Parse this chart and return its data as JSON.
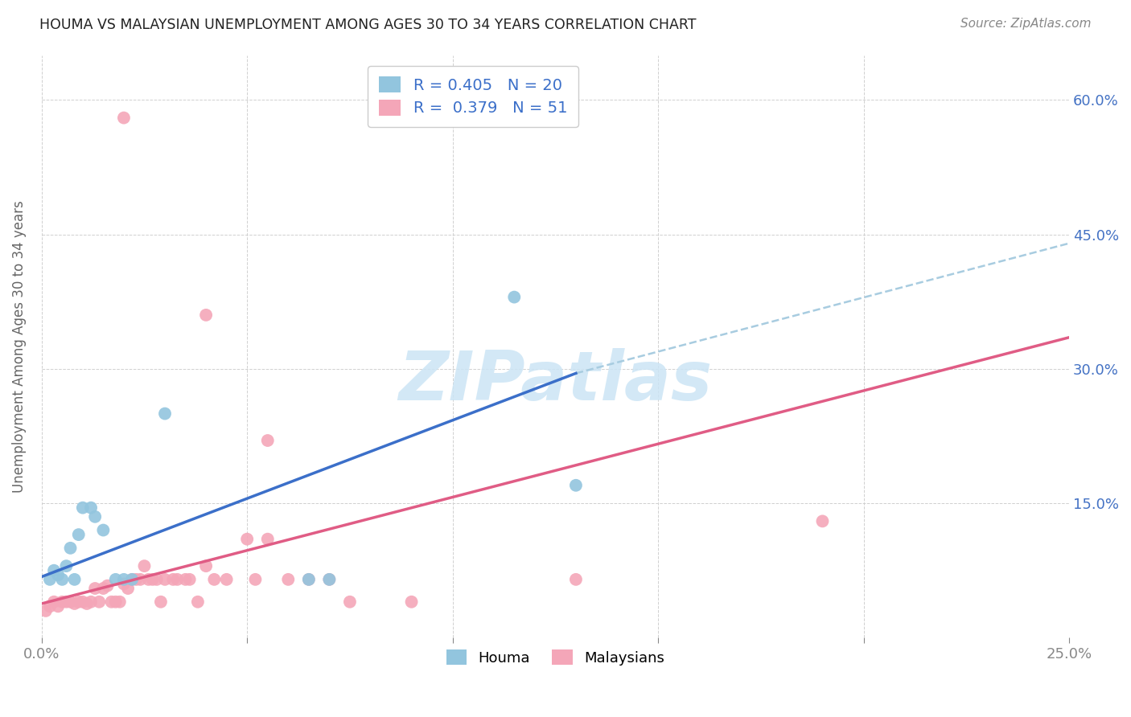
{
  "title": "HOUMA VS MALAYSIAN UNEMPLOYMENT AMONG AGES 30 TO 34 YEARS CORRELATION CHART",
  "source": "Source: ZipAtlas.com",
  "ylabel": "Unemployment Among Ages 30 to 34 years",
  "xlim": [
    0.0,
    0.25
  ],
  "ylim": [
    0.0,
    0.65
  ],
  "xticks": [
    0.0,
    0.05,
    0.1,
    0.15,
    0.2,
    0.25
  ],
  "yticks": [
    0.0,
    0.15,
    0.3,
    0.45,
    0.6
  ],
  "xtick_labels": [
    "0.0%",
    "",
    "",
    "",
    "",
    "25.0%"
  ],
  "ytick_labels_right": [
    "",
    "15.0%",
    "30.0%",
    "45.0%",
    "60.0%"
  ],
  "houma_R": "0.405",
  "houma_N": "20",
  "malaysian_R": "0.379",
  "malaysian_N": "51",
  "houma_color": "#92c5de",
  "malaysian_color": "#f4a6b8",
  "houma_line_color": "#3b6fc9",
  "malaysian_line_color": "#e05c85",
  "dashed_line_color": "#a8cce0",
  "right_tick_color": "#4472c4",
  "watermark_color": "#cce5f5",
  "watermark": "ZIPatlas",
  "houma_points": [
    [
      0.002,
      0.065
    ],
    [
      0.003,
      0.075
    ],
    [
      0.004,
      0.07
    ],
    [
      0.005,
      0.065
    ],
    [
      0.006,
      0.08
    ],
    [
      0.007,
      0.1
    ],
    [
      0.008,
      0.065
    ],
    [
      0.009,
      0.115
    ],
    [
      0.01,
      0.145
    ],
    [
      0.012,
      0.145
    ],
    [
      0.013,
      0.135
    ],
    [
      0.015,
      0.12
    ],
    [
      0.018,
      0.065
    ],
    [
      0.02,
      0.065
    ],
    [
      0.022,
      0.065
    ],
    [
      0.03,
      0.25
    ],
    [
      0.065,
      0.065
    ],
    [
      0.07,
      0.065
    ],
    [
      0.115,
      0.38
    ],
    [
      0.13,
      0.17
    ]
  ],
  "malaysian_points": [
    [
      0.001,
      0.03
    ],
    [
      0.002,
      0.035
    ],
    [
      0.003,
      0.04
    ],
    [
      0.004,
      0.035
    ],
    [
      0.005,
      0.04
    ],
    [
      0.006,
      0.04
    ],
    [
      0.007,
      0.04
    ],
    [
      0.008,
      0.038
    ],
    [
      0.009,
      0.04
    ],
    [
      0.01,
      0.04
    ],
    [
      0.011,
      0.038
    ],
    [
      0.012,
      0.04
    ],
    [
      0.013,
      0.055
    ],
    [
      0.014,
      0.04
    ],
    [
      0.015,
      0.055
    ],
    [
      0.016,
      0.058
    ],
    [
      0.017,
      0.04
    ],
    [
      0.018,
      0.04
    ],
    [
      0.019,
      0.04
    ],
    [
      0.02,
      0.06
    ],
    [
      0.021,
      0.055
    ],
    [
      0.022,
      0.065
    ],
    [
      0.023,
      0.065
    ],
    [
      0.024,
      0.065
    ],
    [
      0.025,
      0.08
    ],
    [
      0.026,
      0.065
    ],
    [
      0.027,
      0.065
    ],
    [
      0.028,
      0.065
    ],
    [
      0.029,
      0.04
    ],
    [
      0.03,
      0.065
    ],
    [
      0.032,
      0.065
    ],
    [
      0.033,
      0.065
    ],
    [
      0.035,
      0.065
    ],
    [
      0.036,
      0.065
    ],
    [
      0.038,
      0.04
    ],
    [
      0.04,
      0.08
    ],
    [
      0.042,
      0.065
    ],
    [
      0.045,
      0.065
    ],
    [
      0.05,
      0.11
    ],
    [
      0.052,
      0.065
    ],
    [
      0.055,
      0.11
    ],
    [
      0.06,
      0.065
    ],
    [
      0.065,
      0.065
    ],
    [
      0.07,
      0.065
    ],
    [
      0.075,
      0.04
    ],
    [
      0.09,
      0.04
    ],
    [
      0.02,
      0.58
    ],
    [
      0.04,
      0.36
    ],
    [
      0.055,
      0.22
    ],
    [
      0.19,
      0.13
    ],
    [
      0.13,
      0.065
    ]
  ],
  "blue_line": {
    "x0": 0.0,
    "y0": 0.068,
    "x1": 0.13,
    "y1": 0.295
  },
  "pink_line": {
    "x0": 0.0,
    "y0": 0.038,
    "x1": 0.25,
    "y1": 0.335
  },
  "dashed_line": {
    "x0": 0.13,
    "y0": 0.295,
    "x1": 0.25,
    "y1": 0.44
  }
}
